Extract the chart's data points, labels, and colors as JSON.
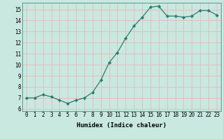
{
  "x": [
    0,
    1,
    2,
    3,
    4,
    5,
    6,
    7,
    8,
    9,
    10,
    11,
    12,
    13,
    14,
    15,
    16,
    17,
    18,
    19,
    20,
    21,
    22,
    23
  ],
  "y": [
    7.0,
    7.0,
    7.3,
    7.1,
    6.8,
    6.5,
    6.8,
    7.0,
    7.5,
    8.6,
    10.2,
    11.1,
    12.4,
    13.5,
    14.3,
    15.2,
    15.3,
    14.4,
    14.4,
    14.3,
    14.4,
    14.9,
    14.9,
    14.5
  ],
  "xlabel": "Humidex (Indice chaleur)",
  "xlim": [
    -0.5,
    23.5
  ],
  "ylim": [
    5.8,
    15.6
  ],
  "yticks": [
    6,
    7,
    8,
    9,
    10,
    11,
    12,
    13,
    14,
    15
  ],
  "xticks": [
    0,
    1,
    2,
    3,
    4,
    5,
    6,
    7,
    8,
    9,
    10,
    11,
    12,
    13,
    14,
    15,
    16,
    17,
    18,
    19,
    20,
    21,
    22,
    23
  ],
  "line_color": "#2a7d6e",
  "marker_color": "#2a7d6e",
  "bg_color": "#c8e8e0",
  "grid_color": "#e8b8b8",
  "tick_label_fontsize": 5.5,
  "xlabel_fontsize": 6.5
}
